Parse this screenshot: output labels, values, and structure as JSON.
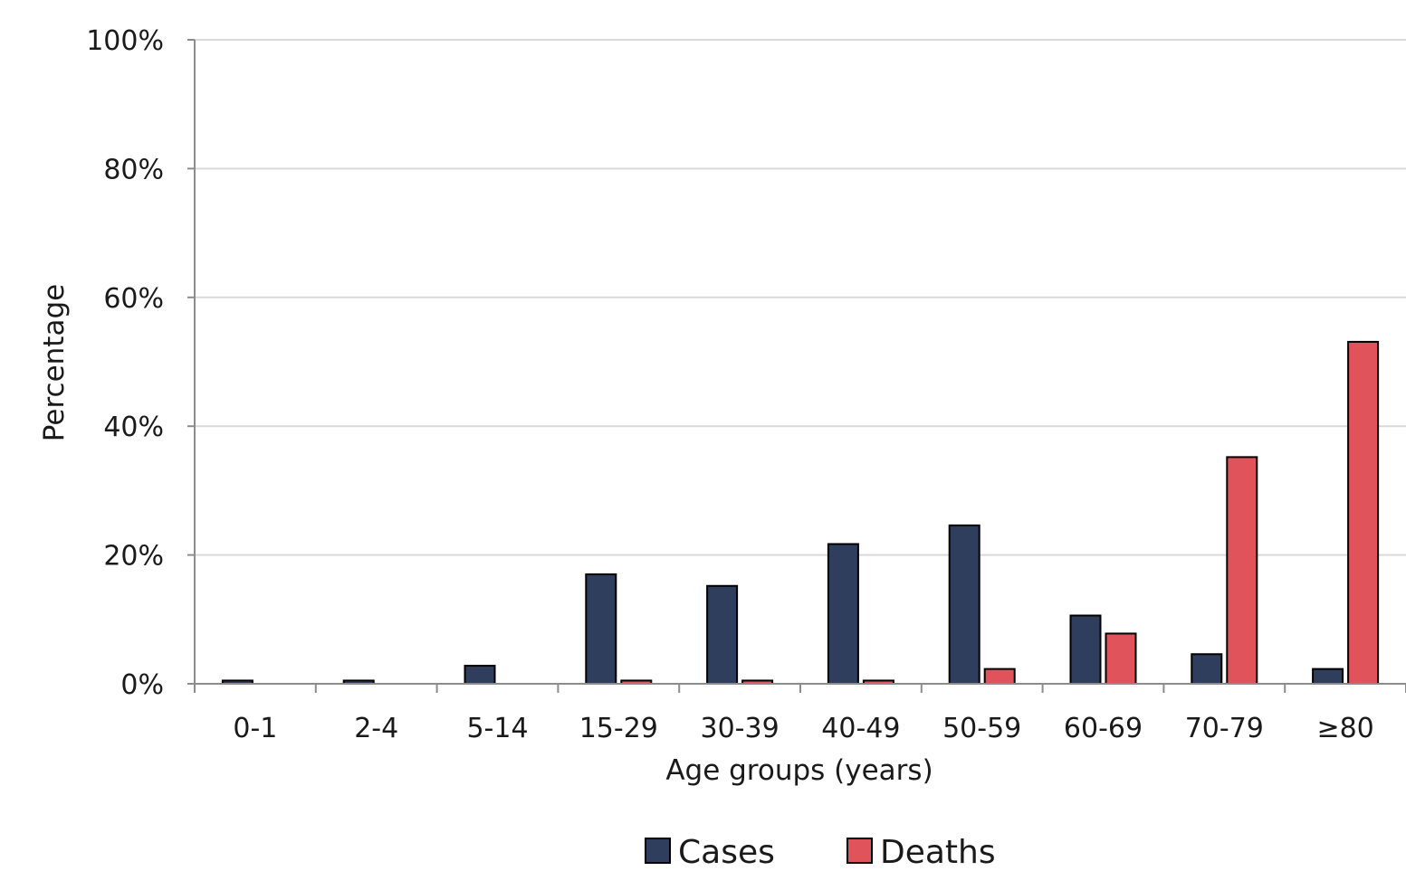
{
  "chart_data": {
    "type": "bar",
    "title": "",
    "xlabel": "Age groups (years)",
    "ylabel": "Percentage",
    "categories": [
      "0-1",
      "2-4",
      "5-14",
      "15-29",
      "30-39",
      "40-49",
      "50-59",
      "60-69",
      "70-79",
      "≥80"
    ],
    "series": [
      {
        "name": "Cases",
        "color": "#2e3e5c",
        "values": [
          0.5,
          0.5,
          2.8,
          17.0,
          15.2,
          21.7,
          24.6,
          10.6,
          4.6,
          2.3
        ]
      },
      {
        "name": "Deaths",
        "color": "#e0535a",
        "values": [
          0,
          0,
          0,
          0.5,
          0.5,
          0.5,
          2.3,
          7.8,
          35.2,
          53.1
        ]
      }
    ],
    "ylim": [
      0,
      100
    ],
    "yticks": [
      0,
      20,
      40,
      60,
      80,
      100
    ],
    "ytick_labels": [
      "0%",
      "20%",
      "40%",
      "60%",
      "80%",
      "100%"
    ],
    "grid": true,
    "legend_position": "bottom"
  }
}
